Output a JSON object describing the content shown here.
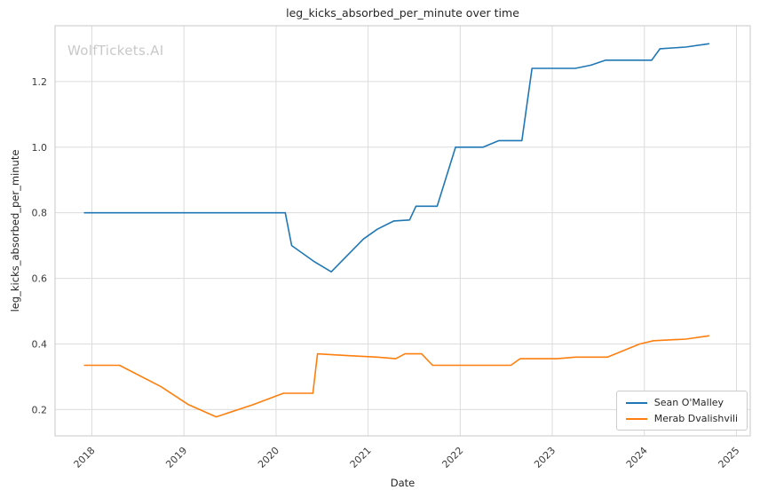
{
  "watermark": "WolfTickets.AI",
  "chart_data": {
    "type": "line",
    "title": "leg_kicks_absorbed_per_minute over time",
    "xlabel": "Date",
    "ylabel": "leg_kicks_absorbed_per_minute",
    "xlim": [
      2017.6,
      2025.15
    ],
    "ylim": [
      0.12,
      1.37
    ],
    "x_ticks": [
      2018,
      2019,
      2020,
      2021,
      2022,
      2023,
      2024,
      2025
    ],
    "y_ticks": [
      0.2,
      0.4,
      0.6,
      0.8,
      1.0,
      1.2
    ],
    "grid": true,
    "legend_position": "lower right",
    "colors": {
      "grid": "#dcdcdc",
      "border": "#d0d0d0",
      "text": "#3b3b3b"
    },
    "series": [
      {
        "name": "Sean O'Malley",
        "color": "#1f77b4",
        "points": [
          [
            2017.92,
            0.8
          ],
          [
            2020.1,
            0.8
          ],
          [
            2020.17,
            0.7
          ],
          [
            2020.42,
            0.65
          ],
          [
            2020.6,
            0.62
          ],
          [
            2020.95,
            0.72
          ],
          [
            2021.1,
            0.75
          ],
          [
            2021.28,
            0.775
          ],
          [
            2021.45,
            0.778
          ],
          [
            2021.52,
            0.82
          ],
          [
            2021.75,
            0.82
          ],
          [
            2021.95,
            1.0
          ],
          [
            2022.25,
            1.0
          ],
          [
            2022.42,
            1.02
          ],
          [
            2022.67,
            1.02
          ],
          [
            2022.78,
            1.24
          ],
          [
            2023.25,
            1.24
          ],
          [
            2023.42,
            1.25
          ],
          [
            2023.58,
            1.265
          ],
          [
            2024.08,
            1.265
          ],
          [
            2024.17,
            1.3
          ],
          [
            2024.45,
            1.305
          ],
          [
            2024.7,
            1.315
          ]
        ]
      },
      {
        "name": "Merab Dvalishvili",
        "color": "#ff7f0e",
        "points": [
          [
            2017.92,
            0.335
          ],
          [
            2018.3,
            0.335
          ],
          [
            2018.75,
            0.27
          ],
          [
            2019.05,
            0.215
          ],
          [
            2019.35,
            0.178
          ],
          [
            2019.75,
            0.215
          ],
          [
            2020.08,
            0.25
          ],
          [
            2020.4,
            0.25
          ],
          [
            2020.45,
            0.37
          ],
          [
            2020.75,
            0.365
          ],
          [
            2021.1,
            0.36
          ],
          [
            2021.3,
            0.355
          ],
          [
            2021.4,
            0.37
          ],
          [
            2021.58,
            0.37
          ],
          [
            2021.7,
            0.335
          ],
          [
            2022.3,
            0.335
          ],
          [
            2022.55,
            0.335
          ],
          [
            2022.65,
            0.355
          ],
          [
            2023.05,
            0.355
          ],
          [
            2023.25,
            0.36
          ],
          [
            2023.6,
            0.36
          ],
          [
            2023.95,
            0.4
          ],
          [
            2024.1,
            0.41
          ],
          [
            2024.45,
            0.415
          ],
          [
            2024.7,
            0.425
          ]
        ]
      }
    ]
  }
}
